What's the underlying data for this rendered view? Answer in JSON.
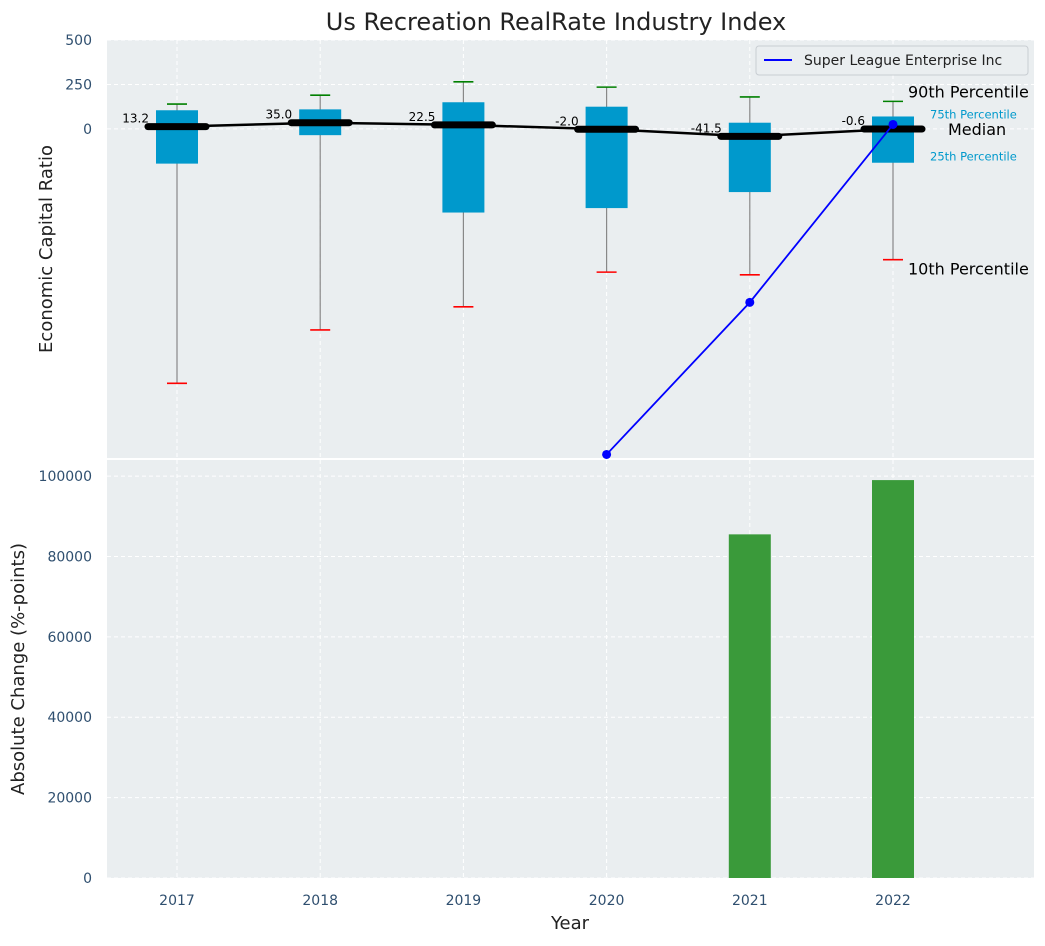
{
  "chart_data": {
    "title": "Us Recreation RealRate Industry Index",
    "x_categories": [
      "2017",
      "2018",
      "2019",
      "2020",
      "2021",
      "2022"
    ],
    "xlabel": "Year",
    "colors": {
      "background": "#eaeef0",
      "box": "#0099cc",
      "whisker_high": "#008000",
      "whisker_low": "#ff0000",
      "median": "#000000",
      "company": "#0000ff",
      "change_bar": "#3a9a3a",
      "tick_text": "#2f4f6f"
    },
    "panels": [
      {
        "type": "box",
        "ylabel": "Economic Capital Ratio",
        "ylim": [
          -1850,
          500
        ],
        "y_ticks": [
          0,
          250,
          500
        ],
        "y_tick_labels": [
          "0",
          "250",
          "500"
        ],
        "grid": true,
        "legend": {
          "position": "top-right",
          "entries": [
            "Super League Enterprise Inc"
          ]
        },
        "percentile_labels": {
          "p90": "90th Percentile",
          "p75": "75th Percentile",
          "median": "Median",
          "p25": "25th Percentile",
          "p10": "10th Percentile"
        },
        "boxes": [
          {
            "year": "2017",
            "p10": -1430,
            "p25": -195,
            "median": 13.2,
            "p75": 105,
            "p90": 140,
            "median_label": "13.2"
          },
          {
            "year": "2018",
            "p10": -1130,
            "p25": -35,
            "median": 35.0,
            "p75": 110,
            "p90": 190,
            "median_label": "35.0"
          },
          {
            "year": "2019",
            "p10": -1000,
            "p25": -470,
            "median": 22.5,
            "p75": 150,
            "p90": 265,
            "median_label": "22.5"
          },
          {
            "year": "2020",
            "p10": -805,
            "p25": -445,
            "median": -2.0,
            "p75": 125,
            "p90": 235,
            "median_label": "-2.0"
          },
          {
            "year": "2021",
            "p10": -820,
            "p25": -355,
            "median": -41.5,
            "p75": 35,
            "p90": 180,
            "median_label": "-41.5"
          },
          {
            "year": "2022",
            "p10": -735,
            "p25": -190,
            "median": -0.6,
            "p75": 70,
            "p90": 155,
            "median_label": "-0.6"
          }
        ],
        "series": [
          {
            "name": "Super League Enterprise Inc",
            "x": [
              "2020",
              "2021",
              "2022"
            ],
            "values": [
              -1830,
              -975,
              25
            ]
          }
        ]
      },
      {
        "type": "bar",
        "ylabel": "Absolute Change (%-points)",
        "ylim": [
          0,
          104000
        ],
        "y_ticks": [
          0,
          20000,
          40000,
          60000,
          80000,
          100000
        ],
        "y_tick_labels": [
          "0",
          "20000",
          "40000",
          "60000",
          "80000",
          "100000"
        ],
        "grid": true,
        "categories": [
          "2021",
          "2022"
        ],
        "values": [
          85500,
          99000
        ]
      }
    ]
  }
}
